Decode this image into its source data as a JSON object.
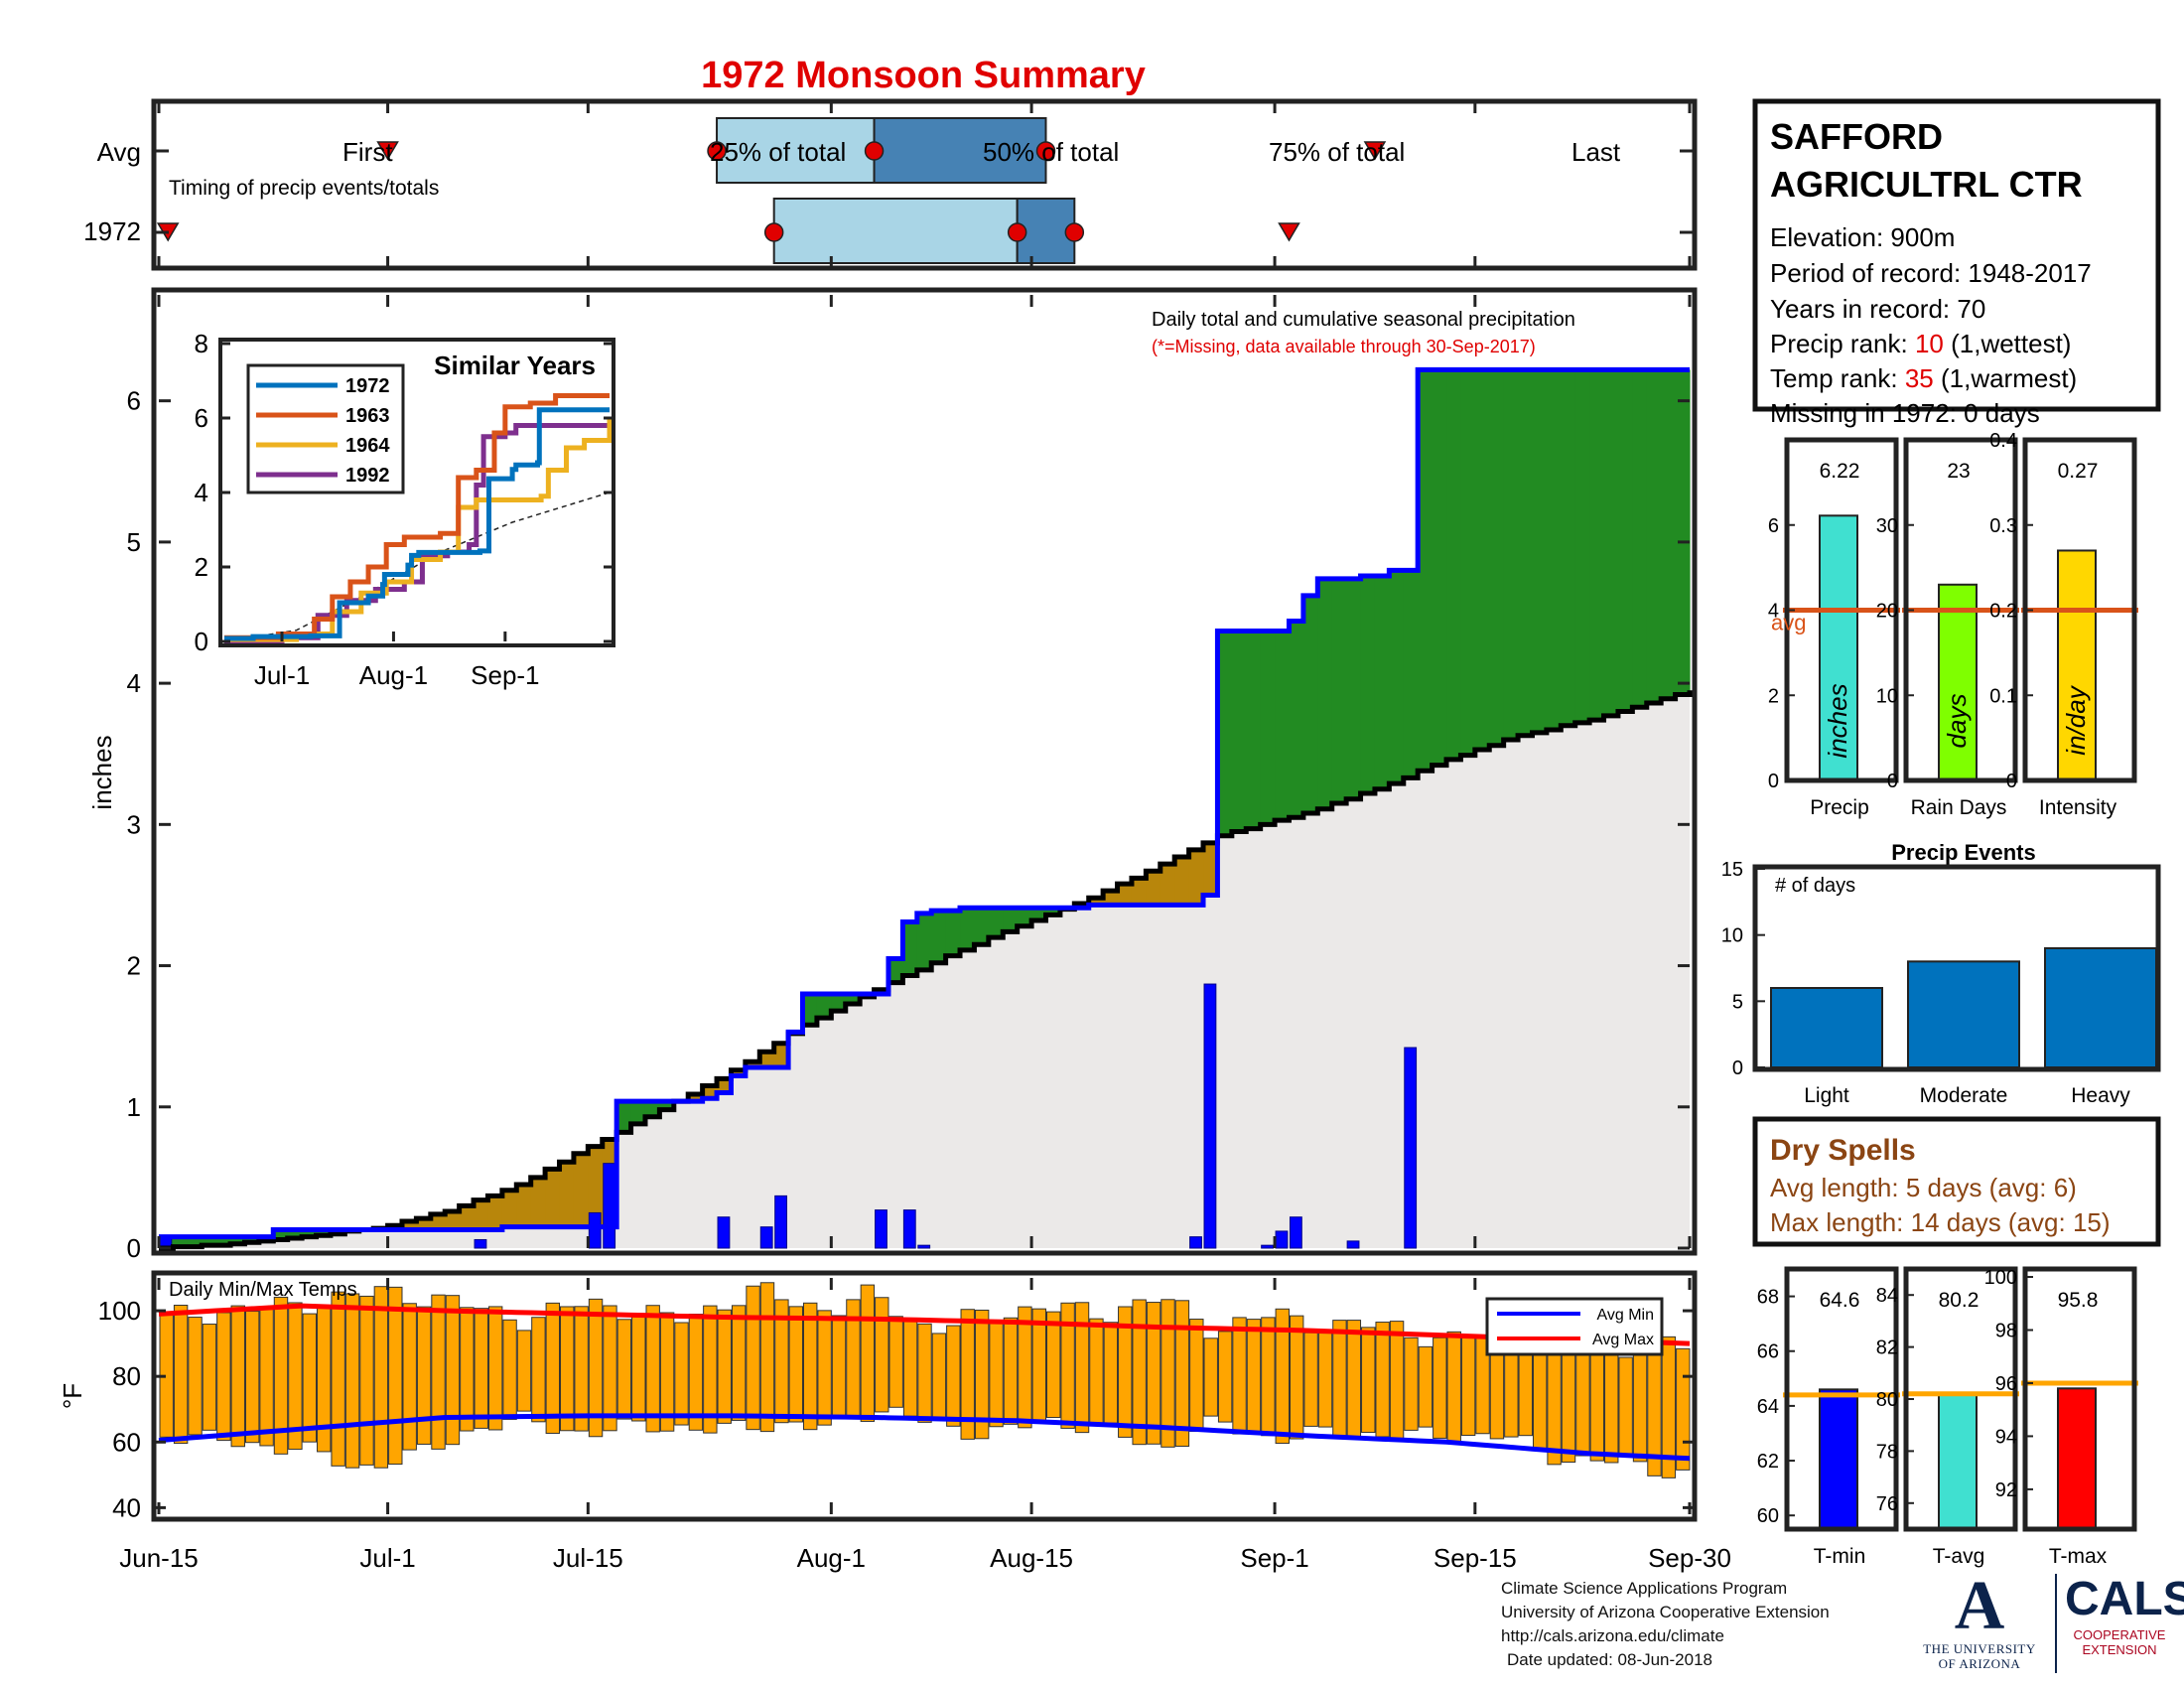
{
  "title": "1972 Monsoon Summary",
  "timing_panel": {
    "row_labels": [
      "Avg",
      "1972"
    ],
    "caption": "Timing of precip events/totals",
    "avg_markers": {
      "first": "First",
      "last": "Last",
      "p25": "25% of total",
      "p50": "50% of total",
      "p75": "75% of total"
    },
    "avg_days": {
      "first": 16,
      "p25": 39,
      "p50": 50,
      "p75": 62,
      "last": 85
    },
    "year_days": {
      "first": 0.5,
      "p25": 43,
      "p50": 60,
      "p75": 64,
      "last": 79
    },
    "colors": {
      "light": "#a9d5e6",
      "dark": "#4682b4",
      "marker": "#e00000"
    }
  },
  "station": {
    "name_line1": "SAFFORD",
    "name_line2": "AGRICULTRL CTR",
    "elevation": "Elevation: 900m",
    "period": "Period of record: 1948-2017",
    "years": "Years in record: 70",
    "precip_rank_label": "Precip rank: ",
    "precip_rank_value": "10",
    "precip_rank_note": " (1,wettest)",
    "temp_rank_label": "Temp rank: ",
    "temp_rank_value": "35",
    "temp_rank_note": " (1,warmest)",
    "missing": "Missing in 1972: 0 days"
  },
  "chart_data": [
    {
      "type": "area",
      "name": "main-precip",
      "title": "Daily total and cumulative seasonal precipitation",
      "subtitle": "(*=Missing, data available through 30-Sep-2017)",
      "xlabel": "",
      "ylabel": "inches",
      "ylim": [
        0,
        6.75
      ],
      "yticks": [
        0,
        1,
        2,
        3,
        4,
        5,
        6
      ],
      "xlim": [
        0,
        107
      ],
      "xticks": [
        {
          "day": 0,
          "label": "Jun-15"
        },
        {
          "day": 16,
          "label": "Jul-1"
        },
        {
          "day": 30,
          "label": "Jul-15"
        },
        {
          "day": 47,
          "label": "Aug-1"
        },
        {
          "day": 61,
          "label": "Aug-15"
        },
        {
          "day": 78,
          "label": "Sep-1"
        },
        {
          "day": 92,
          "label": "Sep-15"
        },
        {
          "day": 107,
          "label": "Sep-30"
        }
      ],
      "cumulative_1972": [
        [
          0,
          0.08
        ],
        [
          8,
          0.13
        ],
        [
          16,
          0.13
        ],
        [
          24,
          0.15
        ],
        [
          30,
          0.15
        ],
        [
          32,
          1.04
        ],
        [
          37,
          1.04
        ],
        [
          38,
          1.06
        ],
        [
          39,
          1.1
        ],
        [
          40,
          1.22
        ],
        [
          41,
          1.28
        ],
        [
          44,
          1.53
        ],
        [
          44.5,
          1.8
        ],
        [
          48,
          1.8
        ],
        [
          51,
          2.05
        ],
        [
          52,
          2.31
        ],
        [
          53,
          2.37
        ],
        [
          54,
          2.39
        ],
        [
          56,
          2.41
        ],
        [
          63,
          2.41
        ],
        [
          65,
          2.43
        ],
        [
          71,
          2.43
        ],
        [
          73,
          2.5
        ],
        [
          73.5,
          4.37
        ],
        [
          78,
          4.37
        ],
        [
          79,
          4.44
        ],
        [
          80,
          4.62
        ],
        [
          81,
          4.74
        ],
        [
          84,
          4.76
        ],
        [
          86,
          4.8
        ],
        [
          87,
          4.8
        ],
        [
          87.5,
          6.22
        ],
        [
          107,
          6.22
        ]
      ],
      "cumulative_avg": [
        [
          0,
          0.0
        ],
        [
          5,
          0.03
        ],
        [
          10,
          0.08
        ],
        [
          15,
          0.14
        ],
        [
          20,
          0.26
        ],
        [
          25,
          0.45
        ],
        [
          30,
          0.72
        ],
        [
          35,
          0.98
        ],
        [
          40,
          1.26
        ],
        [
          45,
          1.58
        ],
        [
          50,
          1.83
        ],
        [
          55,
          2.07
        ],
        [
          60,
          2.28
        ],
        [
          65,
          2.48
        ],
        [
          70,
          2.72
        ],
        [
          74,
          2.92
        ],
        [
          80,
          3.08
        ],
        [
          85,
          3.25
        ],
        [
          90,
          3.46
        ],
        [
          95,
          3.63
        ],
        [
          100,
          3.74
        ],
        [
          107,
          3.95
        ]
      ],
      "daily_1972": [
        [
          0,
          0.08
        ],
        [
          22,
          0.06
        ],
        [
          30,
          0.25
        ],
        [
          31,
          0.6
        ],
        [
          39,
          0.22
        ],
        [
          42,
          0.15
        ],
        [
          43,
          0.37
        ],
        [
          50,
          0.27
        ],
        [
          52,
          0.27
        ],
        [
          53,
          0.02
        ],
        [
          72,
          0.08
        ],
        [
          73,
          1.87
        ],
        [
          77,
          0.02
        ],
        [
          78,
          0.12
        ],
        [
          79,
          0.22
        ],
        [
          83,
          0.05
        ],
        [
          87,
          1.42
        ]
      ],
      "colors": {
        "above": "#228b22",
        "below": "#b8860b",
        "avg_fill": "#ebe9e8",
        "line_1972": "#0000ff",
        "line_avg": "#000000",
        "bars": "#0000ff"
      }
    },
    {
      "type": "line",
      "name": "similar-years",
      "title": "Similar Years",
      "ylim": [
        0,
        8
      ],
      "yticks": [
        0,
        2,
        4,
        6,
        8
      ],
      "xticks": [
        {
          "day": 16,
          "label": "Jul-1"
        },
        {
          "day": 47,
          "label": "Aug-1"
        },
        {
          "day": 78,
          "label": "Sep-1"
        }
      ],
      "xlim": [
        0,
        107
      ],
      "avg_line": [
        [
          0,
          0
        ],
        [
          20,
          0.3
        ],
        [
          40,
          1.3
        ],
        [
          60,
          2.4
        ],
        [
          80,
          3.2
        ],
        [
          107,
          4.0
        ]
      ],
      "series": [
        {
          "name": "1972",
          "color": "#0072bd",
          "points": [
            [
              0,
              0.08
            ],
            [
              8,
              0.13
            ],
            [
              16,
              0.13
            ],
            [
              24,
              0.15
            ],
            [
              30,
              0.15
            ],
            [
              32,
              1.04
            ],
            [
              40,
              1.22
            ],
            [
              44,
              1.53
            ],
            [
              44.5,
              1.8
            ],
            [
              48,
              1.8
            ],
            [
              51,
              2.05
            ],
            [
              52,
              2.31
            ],
            [
              54,
              2.39
            ],
            [
              71,
              2.43
            ],
            [
              73.5,
              4.37
            ],
            [
              80,
              4.62
            ],
            [
              81,
              4.74
            ],
            [
              87,
              4.8
            ],
            [
              87.5,
              6.22
            ],
            [
              107,
              6.22
            ]
          ]
        },
        {
          "name": "1963",
          "color": "#d95319",
          "points": [
            [
              0,
              0.1
            ],
            [
              15,
              0.2
            ],
            [
              25,
              0.6
            ],
            [
              30,
              1.2
            ],
            [
              35,
              1.6
            ],
            [
              40,
              2.0
            ],
            [
              45,
              2.6
            ],
            [
              50,
              2.8
            ],
            [
              55,
              2.8
            ],
            [
              60,
              2.9
            ],
            [
              65,
              4.4
            ],
            [
              70,
              4.6
            ],
            [
              75,
              5.6
            ],
            [
              78,
              6.3
            ],
            [
              85,
              6.4
            ],
            [
              92,
              6.6
            ],
            [
              100,
              6.6
            ],
            [
              107,
              6.6
            ]
          ]
        },
        {
          "name": "1964",
          "color": "#edb120",
          "points": [
            [
              0,
              0.05
            ],
            [
              20,
              0.2
            ],
            [
              30,
              0.8
            ],
            [
              38,
              1.3
            ],
            [
              45,
              1.6
            ],
            [
              52,
              2.2
            ],
            [
              60,
              2.4
            ],
            [
              65,
              3.6
            ],
            [
              70,
              3.8
            ],
            [
              80,
              3.8
            ],
            [
              88,
              3.9
            ],
            [
              90,
              4.6
            ],
            [
              95,
              5.2
            ],
            [
              100,
              5.4
            ],
            [
              107,
              6.0
            ]
          ]
        },
        {
          "name": "1992",
          "color": "#7e2f8e",
          "points": [
            [
              0,
              0.0
            ],
            [
              16,
              0.1
            ],
            [
              26,
              0.7
            ],
            [
              34,
              1.1
            ],
            [
              42,
              1.4
            ],
            [
              50,
              1.6
            ],
            [
              55,
              2.3
            ],
            [
              62,
              2.4
            ],
            [
              68,
              2.6
            ],
            [
              70,
              4.2
            ],
            [
              72,
              5.5
            ],
            [
              78,
              5.6
            ],
            [
              81,
              5.8
            ],
            [
              95,
              5.8
            ],
            [
              107,
              5.8
            ]
          ]
        }
      ]
    },
    {
      "type": "bar",
      "name": "daily-temps",
      "title": "Daily Min/Max Temps",
      "ylabel": "°F",
      "ylim": [
        38,
        110
      ],
      "yticks": [
        40,
        60,
        80,
        100
      ],
      "legend": [
        "Avg Min",
        "Avg Max"
      ],
      "legend_position": "top-right",
      "tmax_samples": [
        [
          0,
          98
        ],
        [
          8,
          101
        ],
        [
          16,
          106
        ],
        [
          20,
          103
        ],
        [
          26,
          97
        ],
        [
          30,
          103
        ],
        [
          36,
          97
        ],
        [
          42,
          106
        ],
        [
          47,
          100
        ],
        [
          50,
          105
        ],
        [
          54,
          94
        ],
        [
          58,
          99
        ],
        [
          62,
          101
        ],
        [
          66,
          99
        ],
        [
          70,
          104
        ],
        [
          74,
          94
        ],
        [
          78,
          99
        ],
        [
          82,
          95
        ],
        [
          86,
          96
        ],
        [
          90,
          90
        ],
        [
          94,
          95
        ],
        [
          98,
          90
        ],
        [
          102,
          88
        ],
        [
          107,
          90
        ]
      ],
      "tmin_samples": [
        [
          0,
          63
        ],
        [
          5,
          60
        ],
        [
          10,
          58
        ],
        [
          14,
          52
        ],
        [
          18,
          56
        ],
        [
          22,
          64
        ],
        [
          26,
          67
        ],
        [
          30,
          62
        ],
        [
          34,
          66
        ],
        [
          38,
          63
        ],
        [
          42,
          66
        ],
        [
          46,
          64
        ],
        [
          50,
          70
        ],
        [
          54,
          66
        ],
        [
          58,
          62
        ],
        [
          62,
          67
        ],
        [
          66,
          64
        ],
        [
          70,
          58
        ],
        [
          74,
          66
        ],
        [
          78,
          61
        ],
        [
          82,
          63
        ],
        [
          86,
          62
        ],
        [
          90,
          62
        ],
        [
          94,
          62
        ],
        [
          98,
          55
        ],
        [
          102,
          54
        ],
        [
          107,
          50
        ]
      ],
      "avg_max": [
        [
          0,
          99
        ],
        [
          10,
          101.5
        ],
        [
          20,
          100
        ],
        [
          30,
          99
        ],
        [
          40,
          98
        ],
        [
          50,
          97.5
        ],
        [
          60,
          96.5
        ],
        [
          70,
          95
        ],
        [
          80,
          94
        ],
        [
          90,
          92.5
        ],
        [
          100,
          91
        ],
        [
          107,
          90
        ]
      ],
      "avg_min": [
        [
          0,
          60.5
        ],
        [
          10,
          64
        ],
        [
          20,
          67.5
        ],
        [
          30,
          68
        ],
        [
          40,
          68
        ],
        [
          50,
          67.5
        ],
        [
          60,
          66.5
        ],
        [
          70,
          64.5
        ],
        [
          80,
          62
        ],
        [
          90,
          60
        ],
        [
          100,
          56.5
        ],
        [
          107,
          55
        ]
      ],
      "colors": {
        "bars": "#ffa500",
        "avg_max": "#ff0000",
        "avg_min": "#0000ff"
      }
    },
    {
      "type": "bar",
      "name": "season-totals",
      "panels": [
        {
          "label": "Precip",
          "value_label": "6.22",
          "value": 6.22,
          "avg": 4.0,
          "avg_label": "avg",
          "ylim": [
            0,
            8
          ],
          "yticks": [
            0,
            2,
            4,
            6
          ],
          "unit": "inches",
          "color": "#40e0d0"
        },
        {
          "label": "Rain Days",
          "value_label": "23",
          "value": 23,
          "avg": 20,
          "ylim": [
            0,
            40
          ],
          "yticks": [
            0,
            10,
            20,
            30
          ],
          "unit": "days",
          "color": "#7fff00"
        },
        {
          "label": "Intensity",
          "value_label": "0.27",
          "value": 0.27,
          "avg": 0.2,
          "ylim": [
            0,
            0.4
          ],
          "yticks": [
            0,
            0.1,
            0.2,
            0.3,
            0.4
          ],
          "unit": "in/day",
          "color": "#ffd700"
        }
      ]
    },
    {
      "type": "bar",
      "name": "precip-events",
      "title": "Precip Events",
      "ylabel": "# of days",
      "categories": [
        "Light",
        "Moderate",
        "Heavy"
      ],
      "values": [
        6,
        8,
        9
      ],
      "ylim": [
        0,
        15
      ],
      "yticks": [
        0,
        5,
        10,
        15
      ],
      "color": "#0072bd"
    },
    {
      "type": "bar",
      "name": "temp-summary",
      "panels": [
        {
          "label": "T-min",
          "value_label": "64.6",
          "value": 64.6,
          "avg": 64.4,
          "ylim": [
            59.5,
            69
          ],
          "yticks": [
            60,
            62,
            64,
            66,
            68
          ],
          "color": "#0000ff"
        },
        {
          "label": "T-avg",
          "value_label": "80.2",
          "value": 80.2,
          "avg": 80.2,
          "ylim": [
            75,
            85
          ],
          "yticks": [
            76,
            78,
            80,
            82,
            84
          ],
          "color": "#40e0d0"
        },
        {
          "label": "T-max",
          "value_label": "95.8",
          "value": 95.8,
          "avg": 96.0,
          "ylim": [
            90.5,
            100.3
          ],
          "yticks": [
            92,
            94,
            96,
            98,
            100
          ],
          "color": "#ff0000"
        }
      ]
    }
  ],
  "dry_spells": {
    "title": "Dry Spells",
    "avg_length": "Avg length: 5 days (avg: 6)",
    "max_length": "Max length: 14 days (avg: 15)",
    "color": "#8b4513"
  },
  "footer": {
    "line1": "Climate Science Applications Program",
    "line2": "University of Arizona Cooperative Extension",
    "line3": "http://cals.arizona.edu/climate",
    "line4": "Date updated: 08-Jun-2018"
  },
  "logos": {
    "ua_line1": "THE UNIVERSITY",
    "ua_line2": "OF ARIZONA",
    "cals": "CALS",
    "cals_line1": "COOPERATIVE",
    "cals_line2": "EXTENSION"
  }
}
